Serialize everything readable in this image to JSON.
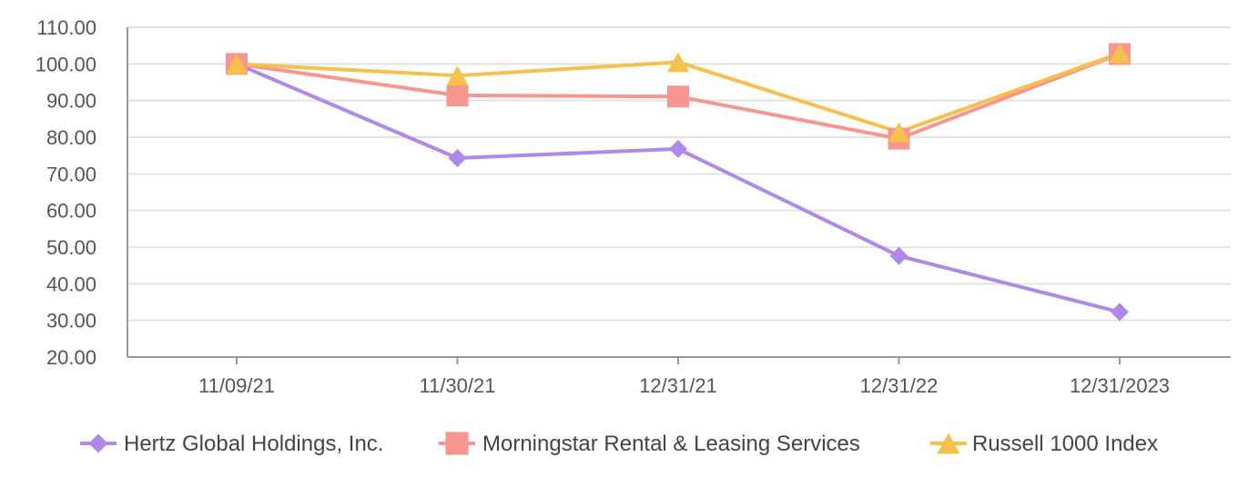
{
  "chart_data": {
    "type": "line",
    "categories": [
      "11/09/21",
      "11/30/21",
      "12/31/21",
      "12/31/22",
      "12/31/2023"
    ],
    "ylim": [
      20,
      110
    ],
    "yticks": [
      "20.00",
      "30.00",
      "40.00",
      "50.00",
      "60.00",
      "70.00",
      "80.00",
      "90.00",
      "100.00",
      "110.00"
    ],
    "grid": true,
    "legend_position": "bottom",
    "series": [
      {
        "name": "Hertz Global Holdings, Inc.",
        "color": "#b088ea",
        "marker": "diamond",
        "values": [
          100.0,
          74.3,
          76.8,
          47.6,
          32.3
        ]
      },
      {
        "name": "Morningstar Rental & Leasing Services",
        "color": "#f7968e",
        "marker": "square",
        "values": [
          100.0,
          91.4,
          91.1,
          79.6,
          102.7
        ]
      },
      {
        "name": "Russell 1000 Index",
        "color": "#f6c04d",
        "marker": "triangle",
        "values": [
          100.0,
          96.8,
          100.5,
          81.4,
          102.9
        ]
      }
    ]
  }
}
